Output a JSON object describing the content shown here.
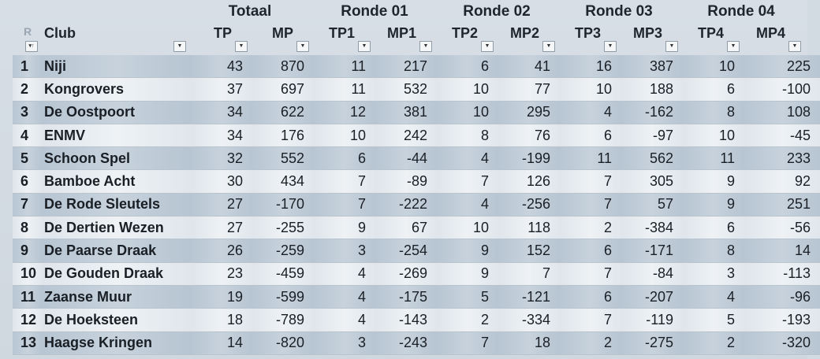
{
  "groups": {
    "totaal": "Totaal",
    "ronde01": "Ronde 01",
    "ronde02": "Ronde 02",
    "ronde03": "Ronde 03",
    "ronde04": "Ronde 04"
  },
  "columns": {
    "rank": "R",
    "club": "Club",
    "tp": "TP",
    "mp": "MP",
    "tp1": "TP1",
    "mp1": "MP1",
    "tp2": "TP2",
    "mp2": "MP2",
    "tp3": "TP3",
    "mp3": "MP3",
    "tp4": "TP4",
    "mp4": "MP4"
  },
  "rows": [
    {
      "rank": "1",
      "club": "Niji",
      "tp": "43",
      "mp": "870",
      "tp1": "11",
      "mp1": "217",
      "tp2": "6",
      "mp2": "41",
      "tp3": "16",
      "mp3": "387",
      "tp4": "10",
      "mp4": "225"
    },
    {
      "rank": "2",
      "club": "Kongrovers",
      "tp": "37",
      "mp": "697",
      "tp1": "11",
      "mp1": "532",
      "tp2": "10",
      "mp2": "77",
      "tp3": "10",
      "mp3": "188",
      "tp4": "6",
      "mp4": "-100"
    },
    {
      "rank": "3",
      "club": "De Oostpoort",
      "tp": "34",
      "mp": "622",
      "tp1": "12",
      "mp1": "381",
      "tp2": "10",
      "mp2": "295",
      "tp3": "4",
      "mp3": "-162",
      "tp4": "8",
      "mp4": "108"
    },
    {
      "rank": "4",
      "club": "ENMV",
      "tp": "34",
      "mp": "176",
      "tp1": "10",
      "mp1": "242",
      "tp2": "8",
      "mp2": "76",
      "tp3": "6",
      "mp3": "-97",
      "tp4": "10",
      "mp4": "-45"
    },
    {
      "rank": "5",
      "club": "Schoon Spel",
      "tp": "32",
      "mp": "552",
      "tp1": "6",
      "mp1": "-44",
      "tp2": "4",
      "mp2": "-199",
      "tp3": "11",
      "mp3": "562",
      "tp4": "11",
      "mp4": "233"
    },
    {
      "rank": "6",
      "club": "Bamboe Acht",
      "tp": "30",
      "mp": "434",
      "tp1": "7",
      "mp1": "-89",
      "tp2": "7",
      "mp2": "126",
      "tp3": "7",
      "mp3": "305",
      "tp4": "9",
      "mp4": "92"
    },
    {
      "rank": "7",
      "club": "De Rode Sleutels",
      "tp": "27",
      "mp": "-170",
      "tp1": "7",
      "mp1": "-222",
      "tp2": "4",
      "mp2": "-256",
      "tp3": "7",
      "mp3": "57",
      "tp4": "9",
      "mp4": "251"
    },
    {
      "rank": "8",
      "club": "De Dertien Wezen",
      "tp": "27",
      "mp": "-255",
      "tp1": "9",
      "mp1": "67",
      "tp2": "10",
      "mp2": "118",
      "tp3": "2",
      "mp3": "-384",
      "tp4": "6",
      "mp4": "-56"
    },
    {
      "rank": "9",
      "club": "De Paarse Draak",
      "tp": "26",
      "mp": "-259",
      "tp1": "3",
      "mp1": "-254",
      "tp2": "9",
      "mp2": "152",
      "tp3": "6",
      "mp3": "-171",
      "tp4": "8",
      "mp4": "14"
    },
    {
      "rank": "10",
      "club": "De Gouden Draak",
      "tp": "23",
      "mp": "-459",
      "tp1": "4",
      "mp1": "-269",
      "tp2": "9",
      "mp2": "7",
      "tp3": "7",
      "mp3": "-84",
      "tp4": "3",
      "mp4": "-113"
    },
    {
      "rank": "11",
      "club": "Zaanse Muur",
      "tp": "19",
      "mp": "-599",
      "tp1": "4",
      "mp1": "-175",
      "tp2": "5",
      "mp2": "-121",
      "tp3": "6",
      "mp3": "-207",
      "tp4": "4",
      "mp4": "-96"
    },
    {
      "rank": "12",
      "club": "De Hoeksteen",
      "tp": "18",
      "mp": "-789",
      "tp1": "4",
      "mp1": "-143",
      "tp2": "2",
      "mp2": "-334",
      "tp3": "7",
      "mp3": "-119",
      "tp4": "5",
      "mp4": "-193"
    },
    {
      "rank": "13",
      "club": "Haagse Kringen",
      "tp": "14",
      "mp": "-820",
      "tp1": "3",
      "mp1": "-243",
      "tp2": "7",
      "mp2": "18",
      "tp3": "2",
      "mp3": "-275",
      "tp4": "2",
      "mp4": "-320"
    }
  ],
  "icons": {
    "filter_dropdown": "chevron-down-icon",
    "sort_ascending": "sort-asc-icon"
  },
  "colors": {
    "row_band": "#c0ccd8",
    "row_light": "#e8edf1"
  }
}
